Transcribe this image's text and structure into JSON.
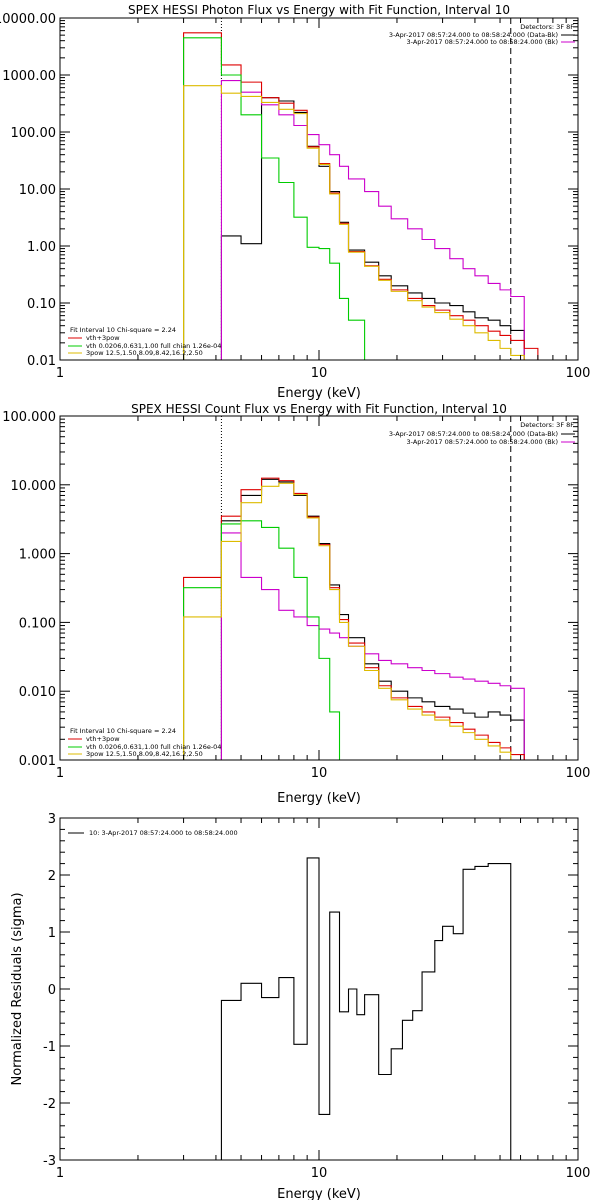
{
  "chart_data": [
    {
      "type": "line",
      "title": "SPEX HESSI Photon Flux vs Energy with Fit Function, Interval 10",
      "xlabel": "Energy (keV)",
      "ylabel": "",
      "xscale": "log",
      "yscale": "log",
      "xlim": [
        1,
        100
      ],
      "ylim": [
        0.01,
        10000
      ],
      "xticks": [
        1,
        10,
        100
      ],
      "xtick_labels": [
        "1",
        "10",
        "100"
      ],
      "yticks": [
        0.01,
        0.1,
        1,
        10,
        100,
        1000,
        10000
      ],
      "ytick_labels": [
        "0.01",
        "0.10",
        "1.00",
        "10.00",
        "100.00",
        "1000.00",
        "10000.00"
      ],
      "vlines": [
        {
          "x": 4.2,
          "style": "dotted"
        },
        {
          "x": 55,
          "style": "dashed"
        }
      ],
      "legend_right": {
        "title": "Detectors: 3F 8F",
        "entries": [
          {
            "text": "3-Apr-2017 08:57:24.000 to 08:58:24.000 (Data-Bk)",
            "color": "#000000"
          },
          {
            "text": "3-Apr-2017 08:57:24.000 to 08:58:24.000 (Bk)",
            "color": "#cc00cc"
          }
        ]
      },
      "legend_left": [
        {
          "text": "Fit Interval 10   Chi-square = 2.24",
          "color": null
        },
        {
          "text": "vth+3pow",
          "color": "#dd0000"
        },
        {
          "text": "vth 0.0206,0.631,1.00  full chian 1.26e-04",
          "color": "#00cc00"
        },
        {
          "text": "3pow 12.5,1.50,8.09,8.42,16.2,2.50",
          "color": "#ddbb00"
        }
      ],
      "edges": [
        3,
        4.2,
        5,
        6,
        7,
        8,
        9,
        10,
        11,
        12,
        13,
        15,
        17,
        19,
        22,
        25,
        28,
        32,
        36,
        40,
        45,
        50,
        55,
        62,
        70
      ],
      "series": [
        {
          "name": "Data-Bk",
          "color": "#000000",
          "values": [
            null,
            1.5,
            1.1,
            400,
            350,
            220,
            56,
            25,
            9,
            2.6,
            0.85,
            0.52,
            0.3,
            0.2,
            0.15,
            0.12,
            0.1,
            0.09,
            0.07,
            0.055,
            0.05,
            0.04,
            0.033,
            null
          ]
        },
        {
          "name": "Bk",
          "color": "#cc00cc",
          "values": [
            null,
            800,
            500,
            300,
            200,
            130,
            90,
            60,
            40,
            25,
            15,
            9,
            5,
            3,
            2,
            1.3,
            0.9,
            0.6,
            0.4,
            0.3,
            0.22,
            0.17,
            0.13,
            null
          ]
        },
        {
          "name": "vth+3pow",
          "color": "#dd0000",
          "values": [
            5500,
            1500,
            750,
            400,
            320,
            240,
            55,
            28,
            8.5,
            2.5,
            0.8,
            0.45,
            0.26,
            0.17,
            0.12,
            0.09,
            0.075,
            0.06,
            0.05,
            0.04,
            0.032,
            0.027,
            0.022,
            0.016
          ]
        },
        {
          "name": "vth",
          "color": "#00cc00",
          "values": [
            4500,
            1000,
            200,
            35,
            13,
            3.2,
            0.95,
            0.9,
            0.5,
            0.12,
            0.05,
            null,
            null,
            null,
            null,
            null,
            null,
            null,
            null,
            null,
            null,
            null,
            null,
            null
          ]
        },
        {
          "name": "3pow",
          "color": "#ddbb00",
          "values": [
            650,
            480,
            420,
            330,
            250,
            210,
            52,
            27,
            8.2,
            2.4,
            0.78,
            0.44,
            0.25,
            0.16,
            0.11,
            0.085,
            0.068,
            0.052,
            0.04,
            0.03,
            0.022,
            0.016,
            0.012,
            0.009
          ]
        }
      ]
    },
    {
      "type": "line",
      "title": "SPEX HESSI Count Flux vs Energy with Fit Function, Interval 10",
      "xlabel": "Energy (keV)",
      "ylabel": "",
      "xscale": "log",
      "yscale": "log",
      "xlim": [
        1,
        100
      ],
      "ylim": [
        0.001,
        100
      ],
      "xticks": [
        1,
        10,
        100
      ],
      "xtick_labels": [
        "1",
        "10",
        "100"
      ],
      "yticks": [
        0.001,
        0.01,
        0.1,
        1,
        10,
        100
      ],
      "ytick_labels": [
        "0.001",
        "0.010",
        "0.100",
        "1.000",
        "10.000",
        "100.000"
      ],
      "vlines": [
        {
          "x": 4.2,
          "style": "dotted"
        },
        {
          "x": 55,
          "style": "dashed"
        }
      ],
      "legend_right": {
        "title": "Detectors: 3F 8F",
        "entries": [
          {
            "text": "3-Apr-2017 08:57:24.000 to 08:58:24.000 (Data-Bk)",
            "color": "#000000"
          },
          {
            "text": "3-Apr-2017 08:57:24.000 to 08:58:24.000 (Bk)",
            "color": "#cc00cc"
          }
        ]
      },
      "legend_left": [
        {
          "text": "Fit Interval 10   Chi-square = 2.24",
          "color": null
        },
        {
          "text": "vth+3pow",
          "color": "#dd0000"
        },
        {
          "text": "vth 0.0206,0.631,1.00  full chian 1.26e-04",
          "color": "#00cc00"
        },
        {
          "text": "3pow 12.5,1.50,8.09,8.42,16.2,2.50",
          "color": "#ddbb00"
        }
      ],
      "edges": [
        3,
        4.2,
        5,
        6,
        7,
        8,
        9,
        10,
        11,
        12,
        13,
        15,
        17,
        19,
        22,
        25,
        28,
        32,
        36,
        40,
        45,
        50,
        55,
        62,
        70
      ],
      "series": [
        {
          "name": "Data-Bk",
          "color": "#000000",
          "values": [
            null,
            3.0,
            7.0,
            12.0,
            11.0,
            7.0,
            3.5,
            1.4,
            0.35,
            0.13,
            0.06,
            0.025,
            0.014,
            0.01,
            0.008,
            0.007,
            0.006,
            0.0055,
            0.0048,
            0.0042,
            0.005,
            0.0045,
            0.0038,
            null
          ]
        },
        {
          "name": "Bk",
          "color": "#cc00cc",
          "values": [
            null,
            2.0,
            0.45,
            0.3,
            0.15,
            0.12,
            0.09,
            0.08,
            0.07,
            0.06,
            0.045,
            0.035,
            0.028,
            0.025,
            0.022,
            0.02,
            0.018,
            0.016,
            0.015,
            0.014,
            0.013,
            0.012,
            0.011,
            null
          ]
        },
        {
          "name": "vth+3pow",
          "color": "#dd0000",
          "values": [
            0.45,
            3.5,
            8.5,
            12.5,
            11.5,
            7.5,
            3.4,
            1.35,
            0.32,
            0.11,
            0.05,
            0.022,
            0.012,
            0.008,
            0.006,
            0.005,
            0.0042,
            0.0035,
            0.0028,
            0.0023,
            0.0018,
            0.0015,
            0.0012,
            0.0008
          ]
        },
        {
          "name": "vth",
          "color": "#00cc00",
          "values": [
            0.32,
            2.7,
            3.0,
            2.4,
            1.2,
            0.45,
            0.12,
            0.03,
            0.005,
            null,
            null,
            null,
            null,
            null,
            null,
            null,
            null,
            null,
            null,
            null,
            null,
            null,
            null,
            null
          ]
        },
        {
          "name": "3pow",
          "color": "#ddbb00",
          "values": [
            0.12,
            1.5,
            5.5,
            9.5,
            10.5,
            7.2,
            3.3,
            1.3,
            0.3,
            0.1,
            0.045,
            0.02,
            0.011,
            0.0075,
            0.0055,
            0.0045,
            0.0038,
            0.0031,
            0.0025,
            0.002,
            0.0016,
            0.0013,
            0.001,
            0.0007
          ]
        }
      ]
    },
    {
      "type": "line",
      "title": "",
      "xlabel": "Energy (keV)",
      "ylabel": "Normalized Residuals (sigma)",
      "xscale": "log",
      "yscale": "linear",
      "xlim": [
        1,
        100
      ],
      "ylim": [
        -3,
        3
      ],
      "xticks": [
        1,
        10,
        100
      ],
      "xtick_labels": [
        "1",
        "10",
        "100"
      ],
      "yticks": [
        -3,
        -2,
        -1,
        0,
        1,
        2,
        3
      ],
      "ytick_labels": [
        "-3",
        "-2",
        "-1",
        "0",
        "1",
        "2",
        "3"
      ],
      "legend_text": "10:  3-Apr-2017 08:57:24.000 to 08:58:24.000",
      "edges": [
        4.2,
        5,
        6,
        7,
        8,
        9,
        10,
        11,
        12,
        13,
        14,
        15,
        17,
        19,
        21,
        23,
        25,
        28,
        30,
        33,
        36,
        40,
        45,
        50,
        55
      ],
      "series": [
        {
          "name": "",
          "color": "#000000",
          "values": [
            -0.2,
            0.1,
            -0.15,
            0.2,
            -0.97,
            2.3,
            -2.2,
            1.35,
            -0.4,
            0.0,
            -0.45,
            -0.1,
            -1.5,
            -1.05,
            -0.55,
            -0.38,
            0.3,
            0.85,
            1.1,
            0.97,
            2.1,
            2.15,
            2.2,
            2.2
          ]
        }
      ]
    }
  ]
}
